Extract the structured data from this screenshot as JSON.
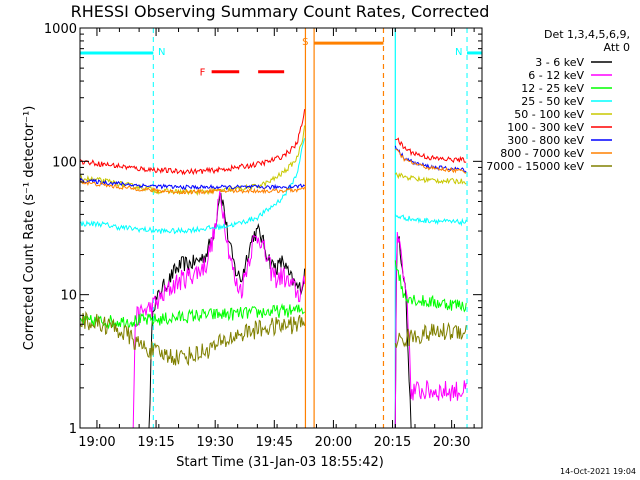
{
  "chart_data": {
    "type": "line",
    "title": "RHESSI Observing Summary Count Rates, Corrected",
    "xlabel": "Start Time (31-Jan-03 18:55:42)",
    "ylabel": "Corrected Count Rate (s⁻¹ detector⁻¹)",
    "yscale": "log",
    "ylim": [
      1,
      1000
    ],
    "xlim_min": [
      0,
      102
    ],
    "x_ticks": [
      {
        "min": 4.3,
        "label": "19:00"
      },
      {
        "min": 19.3,
        "label": "19:15"
      },
      {
        "min": 34.3,
        "label": "19:30"
      },
      {
        "min": 49.3,
        "label": "19:45"
      },
      {
        "min": 64.3,
        "label": "20:00"
      },
      {
        "min": 79.3,
        "label": "20:15"
      },
      {
        "min": 94.3,
        "label": "20:30"
      }
    ],
    "y_ticks": [
      {
        "value": 1,
        "label": "1"
      },
      {
        "value": 10,
        "label": "10"
      },
      {
        "value": 100,
        "label": "100"
      },
      {
        "value": 1000,
        "label": "1000"
      }
    ],
    "legend_header": [
      "Det 1,3,4,5,6,9,",
      "Att 0"
    ],
    "footer_date": "14-Oct-2021 19:04",
    "attenuator_bars": [
      {
        "label": "N",
        "x_start": 0,
        "x_end": 18.6,
        "level": 650,
        "color": "#00ffff",
        "line_x": 18.6
      },
      {
        "label": "N",
        "x_start": 98.2,
        "x_end": 102,
        "level": 650,
        "color": "#00ffff",
        "line_x": 98.2
      }
    ],
    "flare_flag": {
      "label": "F",
      "segments": [
        [
          33.4,
          40.4
        ],
        [
          45.2,
          51.8
        ]
      ],
      "level": 470,
      "color": "#ff0000"
    },
    "saa": {
      "label": "S",
      "x_start": 59.4,
      "x_end": 77.0,
      "level": 770,
      "color": "#ff8000"
    },
    "markers": [
      {
        "x": 57.2,
        "style": "solid",
        "color": "#ff8000"
      },
      {
        "x": 59.4,
        "style": "solid",
        "color": "#ff8000"
      },
      {
        "x": 77.0,
        "style": "dashed",
        "color": "#ff8000"
      },
      {
        "x": 80.0,
        "style": "solid",
        "color": "#00ffff"
      }
    ],
    "series": [
      {
        "name": "3 - 6 keV",
        "color": "#000000",
        "segments": [
          {
            "x": [
              0,
              17.5,
              18.5,
              19.5,
              20.5,
              22,
              24,
              26,
              28,
              30,
              32,
              33.5,
              34.5,
              35.5,
              36.5,
              37.5,
              38.5,
              39.5,
              41,
              42.5,
              44,
              45.5,
              47,
              48.5,
              50,
              51.5,
              53,
              54.5,
              55.5,
              56.5,
              57.2
            ],
            "y": [
              1,
              1,
              8.5,
              9,
              11,
              12,
              15,
              17,
              17,
              18,
              20,
              27,
              36,
              60,
              45,
              28,
              20,
              15,
              13,
              20,
              28,
              30,
              22,
              17,
              16,
              18,
              14,
              12,
              11,
              12,
              16
            ]
          },
          {
            "x": [
              80,
              80.3,
              81,
              81.5,
              82,
              82.5,
              84,
              86,
              88,
              90,
              92,
              94,
              96,
              98.2
            ],
            "y": [
              1,
              22,
              27,
              19,
              15,
              13,
              1,
              1,
              1,
              1,
              1,
              1,
              1,
              1
            ]
          }
        ]
      },
      {
        "name": "6 - 12 keV",
        "color": "#ff00ff",
        "segments": [
          {
            "x": [
              0,
              13.5,
              14,
              15,
              16,
              18,
              20,
              22,
              24,
              26,
              28,
              30,
              32,
              33.5,
              34.5,
              35.5,
              36.5,
              37.5,
              38.5,
              39.5,
              41,
              42.5,
              44,
              45.5,
              47,
              48.5,
              50,
              51.5,
              53,
              54.5,
              55.5,
              56.5,
              57.2
            ],
            "y": [
              1,
              1,
              6.5,
              7,
              7.5,
              8,
              9,
              10.5,
              12,
              13,
              14,
              15,
              17,
              25,
              33,
              58,
              40,
              24,
              17,
              12,
              11,
              17,
              25,
              28,
              20,
              15,
              13,
              14,
              12,
              11,
              10,
              10.5,
              14
            ]
          },
          {
            "x": [
              80,
              80.3,
              81,
              81.5,
              82,
              82.5,
              83,
              84,
              86,
              88,
              90,
              92,
              94,
              96,
              98.2
            ],
            "y": [
              1,
              27,
              30,
              20,
              14,
              12,
              10,
              1.9,
              1.9,
              1.9,
              1.9,
              1.9,
              1.9,
              1.9,
              1.9
            ]
          }
        ]
      },
      {
        "name": "12 - 25 keV",
        "color": "#00ff00",
        "segments": [
          {
            "x": [
              0,
              10,
              20,
              30,
              40,
              50,
              55,
              57.2
            ],
            "y": [
              6.3,
              6.3,
              6.5,
              7,
              7.2,
              7.5,
              7.6,
              7.8
            ]
          },
          {
            "x": [
              80,
              81,
              82,
              84,
              86,
              90,
              94,
              98.2
            ],
            "y": [
              18,
              14,
              10,
              9.5,
              9,
              8.7,
              8.5,
              8.3
            ]
          }
        ]
      },
      {
        "name": "25 - 50 keV",
        "color": "#00ffff",
        "segments": [
          {
            "x": [
              0,
              5,
              10,
              15,
              20,
              25,
              30,
              35,
              40,
              45,
              48,
              51,
              53,
              55,
              56.5,
              57.2
            ],
            "y": [
              34,
              34,
              32,
              31,
              30,
              30,
              31,
              32,
              34,
              38,
              44,
              52,
              62,
              80,
              130,
              160
            ]
          },
          {
            "x": [
              80,
              82,
              84,
              86,
              90,
              94,
              98.2
            ],
            "y": [
              39,
              38,
              37,
              36,
              36,
              35,
              35
            ]
          }
        ]
      },
      {
        "name": "50 - 100 keV",
        "color": "#c8c800",
        "segments": [
          {
            "x": [
              0,
              5,
              10,
              15,
              20,
              25,
              30,
              35,
              40,
              45,
              48,
              51,
              53,
              55,
              56.5,
              57.2
            ],
            "y": [
              75,
              72,
              68,
              64,
              60,
              59,
              59,
              60,
              62,
              65,
              70,
              80,
              90,
              105,
              150,
              210
            ]
          },
          {
            "x": [
              80,
              82,
              84,
              86,
              90,
              94,
              98.2
            ],
            "y": [
              80,
              77,
              75,
              73,
              72,
              71,
              71
            ]
          }
        ]
      },
      {
        "name": "100 - 300 keV",
        "color": "#ff0000",
        "segments": [
          {
            "x": [
              0,
              5,
              10,
              15,
              20,
              25,
              30,
              35,
              40,
              45,
              48,
              51,
              53,
              55,
              56.5,
              57.2
            ],
            "y": [
              100,
              96,
              92,
              88,
              86,
              84,
              84,
              86,
              90,
              95,
              100,
              108,
              118,
              135,
              200,
              280
            ]
          },
          {
            "x": [
              80,
              81,
              82,
              84,
              86,
              88,
              90,
              94,
              98.2
            ],
            "y": [
              150,
              140,
              128,
              118,
              112,
              108,
              105,
              103,
              102
            ]
          }
        ]
      },
      {
        "name": "300 - 800 keV",
        "color": "#0000ff",
        "segments": [
          {
            "x": [
              0,
              5,
              10,
              15,
              20,
              25,
              30,
              35,
              40,
              45,
              50,
              55,
              57.2
            ],
            "y": [
              72,
              70,
              68,
              66,
              65,
              64,
              64,
              64,
              64,
              64,
              64,
              65,
              66
            ]
          },
          {
            "x": [
              80,
              81,
              82,
              84,
              86,
              88,
              90,
              94,
              98.2
            ],
            "y": [
              130,
              118,
              108,
              100,
              95,
              92,
              90,
              88,
              86
            ]
          }
        ]
      },
      {
        "name": "800 - 7000 keV",
        "color": "#ff8000",
        "segments": [
          {
            "x": [
              0,
              5,
              10,
              15,
              20,
              25,
              30,
              35,
              40,
              45,
              50,
              55,
              57.2
            ],
            "y": [
              70,
              67,
              64,
              62,
              60,
              59,
              59,
              60,
              60,
              60,
              60,
              61,
              62
            ]
          },
          {
            "x": [
              80,
              81,
              82,
              84,
              86,
              88,
              90,
              94,
              98.2
            ],
            "y": [
              125,
              115,
              105,
              98,
              94,
              90,
              88,
              86,
              84
            ]
          }
        ]
      },
      {
        "name": "7000 - 15000 keV",
        "color": "#808000",
        "segments": [
          {
            "x": [
              0,
              8,
              12,
              15,
              20,
              25,
              30,
              35,
              40,
              45,
              50,
              55,
              57.2
            ],
            "y": [
              6.5,
              5.8,
              5.0,
              4.2,
              3.6,
              3.4,
              3.6,
              4.2,
              5.0,
              5.5,
              5.8,
              6.0,
              6.2
            ]
          },
          {
            "x": [
              80,
              82,
              84,
              86,
              88,
              90,
              94,
              98.2
            ],
            "y": [
              4.5,
              4.6,
              4.8,
              5.0,
              5.1,
              5.2,
              5.3,
              5.4
            ]
          }
        ]
      }
    ]
  }
}
